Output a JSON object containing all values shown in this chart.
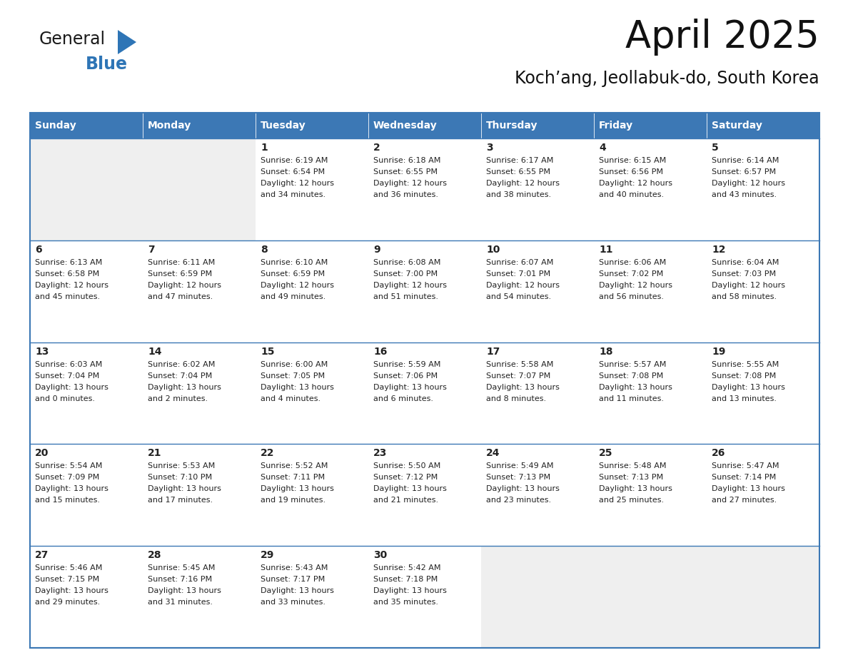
{
  "title": "April 2025",
  "subtitle": "Koch’ang, Jeollabuk-do, South Korea",
  "days_of_week": [
    "Sunday",
    "Monday",
    "Tuesday",
    "Wednesday",
    "Thursday",
    "Friday",
    "Saturday"
  ],
  "header_bg": "#3C78B5",
  "header_text": "#FFFFFF",
  "cell_bg_light": "#FFFFFF",
  "cell_bg_gray": "#EFEFEF",
  "border_color": "#3C78B5",
  "text_color": "#222222",
  "logo_general_color": "#1a1a1a",
  "logo_blue_color": "#2E75B6",
  "weeks": [
    [
      {
        "day": "",
        "sunrise": "",
        "sunset": "",
        "daylight": ""
      },
      {
        "day": "",
        "sunrise": "",
        "sunset": "",
        "daylight": ""
      },
      {
        "day": "1",
        "sunrise": "Sunrise: 6:19 AM",
        "sunset": "Sunset: 6:54 PM",
        "daylight": "Daylight: 12 hours\nand 34 minutes."
      },
      {
        "day": "2",
        "sunrise": "Sunrise: 6:18 AM",
        "sunset": "Sunset: 6:55 PM",
        "daylight": "Daylight: 12 hours\nand 36 minutes."
      },
      {
        "day": "3",
        "sunrise": "Sunrise: 6:17 AM",
        "sunset": "Sunset: 6:55 PM",
        "daylight": "Daylight: 12 hours\nand 38 minutes."
      },
      {
        "day": "4",
        "sunrise": "Sunrise: 6:15 AM",
        "sunset": "Sunset: 6:56 PM",
        "daylight": "Daylight: 12 hours\nand 40 minutes."
      },
      {
        "day": "5",
        "sunrise": "Sunrise: 6:14 AM",
        "sunset": "Sunset: 6:57 PM",
        "daylight": "Daylight: 12 hours\nand 43 minutes."
      }
    ],
    [
      {
        "day": "6",
        "sunrise": "Sunrise: 6:13 AM",
        "sunset": "Sunset: 6:58 PM",
        "daylight": "Daylight: 12 hours\nand 45 minutes."
      },
      {
        "day": "7",
        "sunrise": "Sunrise: 6:11 AM",
        "sunset": "Sunset: 6:59 PM",
        "daylight": "Daylight: 12 hours\nand 47 minutes."
      },
      {
        "day": "8",
        "sunrise": "Sunrise: 6:10 AM",
        "sunset": "Sunset: 6:59 PM",
        "daylight": "Daylight: 12 hours\nand 49 minutes."
      },
      {
        "day": "9",
        "sunrise": "Sunrise: 6:08 AM",
        "sunset": "Sunset: 7:00 PM",
        "daylight": "Daylight: 12 hours\nand 51 minutes."
      },
      {
        "day": "10",
        "sunrise": "Sunrise: 6:07 AM",
        "sunset": "Sunset: 7:01 PM",
        "daylight": "Daylight: 12 hours\nand 54 minutes."
      },
      {
        "day": "11",
        "sunrise": "Sunrise: 6:06 AM",
        "sunset": "Sunset: 7:02 PM",
        "daylight": "Daylight: 12 hours\nand 56 minutes."
      },
      {
        "day": "12",
        "sunrise": "Sunrise: 6:04 AM",
        "sunset": "Sunset: 7:03 PM",
        "daylight": "Daylight: 12 hours\nand 58 minutes."
      }
    ],
    [
      {
        "day": "13",
        "sunrise": "Sunrise: 6:03 AM",
        "sunset": "Sunset: 7:04 PM",
        "daylight": "Daylight: 13 hours\nand 0 minutes."
      },
      {
        "day": "14",
        "sunrise": "Sunrise: 6:02 AM",
        "sunset": "Sunset: 7:04 PM",
        "daylight": "Daylight: 13 hours\nand 2 minutes."
      },
      {
        "day": "15",
        "sunrise": "Sunrise: 6:00 AM",
        "sunset": "Sunset: 7:05 PM",
        "daylight": "Daylight: 13 hours\nand 4 minutes."
      },
      {
        "day": "16",
        "sunrise": "Sunrise: 5:59 AM",
        "sunset": "Sunset: 7:06 PM",
        "daylight": "Daylight: 13 hours\nand 6 minutes."
      },
      {
        "day": "17",
        "sunrise": "Sunrise: 5:58 AM",
        "sunset": "Sunset: 7:07 PM",
        "daylight": "Daylight: 13 hours\nand 8 minutes."
      },
      {
        "day": "18",
        "sunrise": "Sunrise: 5:57 AM",
        "sunset": "Sunset: 7:08 PM",
        "daylight": "Daylight: 13 hours\nand 11 minutes."
      },
      {
        "day": "19",
        "sunrise": "Sunrise: 5:55 AM",
        "sunset": "Sunset: 7:08 PM",
        "daylight": "Daylight: 13 hours\nand 13 minutes."
      }
    ],
    [
      {
        "day": "20",
        "sunrise": "Sunrise: 5:54 AM",
        "sunset": "Sunset: 7:09 PM",
        "daylight": "Daylight: 13 hours\nand 15 minutes."
      },
      {
        "day": "21",
        "sunrise": "Sunrise: 5:53 AM",
        "sunset": "Sunset: 7:10 PM",
        "daylight": "Daylight: 13 hours\nand 17 minutes."
      },
      {
        "day": "22",
        "sunrise": "Sunrise: 5:52 AM",
        "sunset": "Sunset: 7:11 PM",
        "daylight": "Daylight: 13 hours\nand 19 minutes."
      },
      {
        "day": "23",
        "sunrise": "Sunrise: 5:50 AM",
        "sunset": "Sunset: 7:12 PM",
        "daylight": "Daylight: 13 hours\nand 21 minutes."
      },
      {
        "day": "24",
        "sunrise": "Sunrise: 5:49 AM",
        "sunset": "Sunset: 7:13 PM",
        "daylight": "Daylight: 13 hours\nand 23 minutes."
      },
      {
        "day": "25",
        "sunrise": "Sunrise: 5:48 AM",
        "sunset": "Sunset: 7:13 PM",
        "daylight": "Daylight: 13 hours\nand 25 minutes."
      },
      {
        "day": "26",
        "sunrise": "Sunrise: 5:47 AM",
        "sunset": "Sunset: 7:14 PM",
        "daylight": "Daylight: 13 hours\nand 27 minutes."
      }
    ],
    [
      {
        "day": "27",
        "sunrise": "Sunrise: 5:46 AM",
        "sunset": "Sunset: 7:15 PM",
        "daylight": "Daylight: 13 hours\nand 29 minutes."
      },
      {
        "day": "28",
        "sunrise": "Sunrise: 5:45 AM",
        "sunset": "Sunset: 7:16 PM",
        "daylight": "Daylight: 13 hours\nand 31 minutes."
      },
      {
        "day": "29",
        "sunrise": "Sunrise: 5:43 AM",
        "sunset": "Sunset: 7:17 PM",
        "daylight": "Daylight: 13 hours\nand 33 minutes."
      },
      {
        "day": "30",
        "sunrise": "Sunrise: 5:42 AM",
        "sunset": "Sunset: 7:18 PM",
        "daylight": "Daylight: 13 hours\nand 35 minutes."
      },
      {
        "day": "",
        "sunrise": "",
        "sunset": "",
        "daylight": ""
      },
      {
        "day": "",
        "sunrise": "",
        "sunset": "",
        "daylight": ""
      },
      {
        "day": "",
        "sunrise": "",
        "sunset": "",
        "daylight": ""
      }
    ]
  ]
}
